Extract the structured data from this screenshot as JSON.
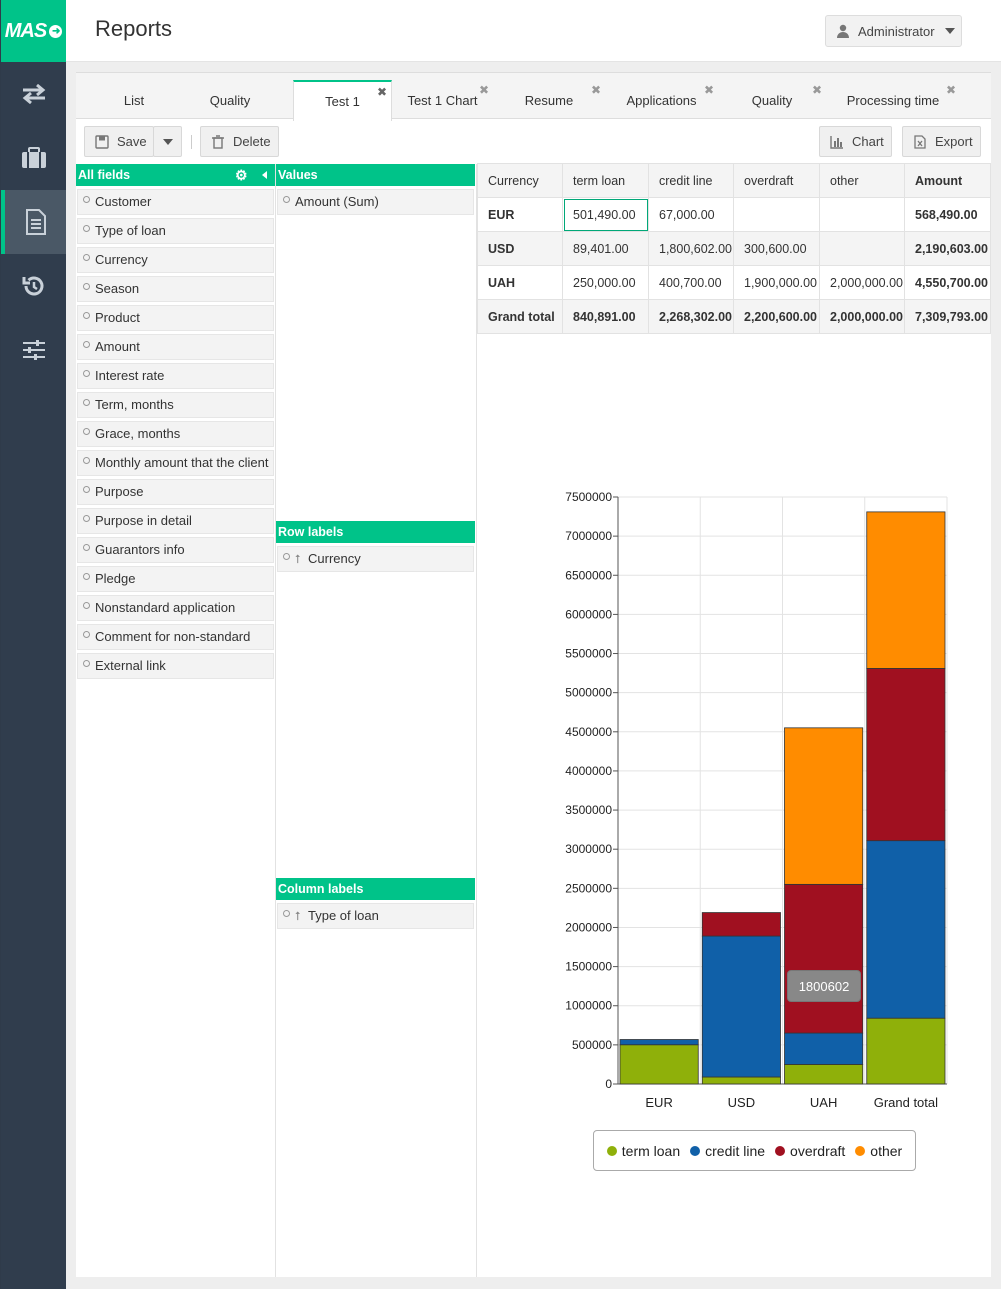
{
  "app": {
    "logo_text": "MAS"
  },
  "header": {
    "title": "Reports",
    "user_label": "Administrator"
  },
  "rail": {
    "items": [
      "transfer-icon",
      "briefcase-icon",
      "document-icon",
      "history-icon",
      "sliders-icon"
    ]
  },
  "tabs": [
    {
      "label": "List",
      "closable": false
    },
    {
      "label": "Quality",
      "closable": false
    },
    {
      "label": "Test 1",
      "closable": true,
      "active": true
    },
    {
      "label": "Test 1 Chart",
      "closable": true
    },
    {
      "label": "Resume",
      "closable": true
    },
    {
      "label": "Applications",
      "closable": true
    },
    {
      "label": "Quality",
      "closable": true
    },
    {
      "label": "Processing time",
      "closable": true
    }
  ],
  "toolbar": {
    "save_label": "Save",
    "delete_label": "Delete",
    "chart_label": "Chart",
    "export_label": "Export"
  },
  "all_fields": {
    "header": "All fields",
    "items": [
      "Customer",
      "Type of loan",
      "Currency",
      "Season",
      "Product",
      "Amount",
      "Interest rate",
      "Term, months",
      "Grace, months",
      "Monthly amount that the client",
      "Purpose",
      "Purpose in detail",
      "Guarantors info",
      "Pledge",
      "Nonstandard application",
      "Comment for non-standard",
      "External link"
    ]
  },
  "values": {
    "header": "Values",
    "items": [
      "Amount (Sum)"
    ]
  },
  "row_labels": {
    "header": "Row labels",
    "items": [
      "Currency"
    ]
  },
  "column_labels": {
    "header": "Column labels",
    "items": [
      "Type of loan"
    ]
  },
  "table": {
    "headers": [
      "Currency",
      "term loan",
      "credit line",
      "overdraft",
      "other",
      "Amount"
    ],
    "rows": [
      [
        "EUR",
        "501,490.00",
        "67,000.00",
        "",
        "",
        "568,490.00"
      ],
      [
        "USD",
        "89,401.00",
        "1,800,602.00",
        "300,600.00",
        "",
        "2,190,603.00"
      ],
      [
        "UAH",
        "250,000.00",
        "400,700.00",
        "1,900,000.00",
        "2,000,000.00",
        "4,550,700.00"
      ],
      [
        "Grand total",
        "840,891.00",
        "2,268,302.00",
        "2,200,600.00",
        "2,000,000.00",
        "7,309,793.00"
      ]
    ]
  },
  "chart_data": {
    "type": "bar",
    "stacked": true,
    "categories": [
      "EUR",
      "USD",
      "UAH",
      "Grand total"
    ],
    "series": [
      {
        "name": "term loan",
        "color": "#8fb00a",
        "values": [
          501490,
          89401,
          250000,
          840891
        ]
      },
      {
        "name": "credit line",
        "color": "#1060a8",
        "values": [
          67000,
          1800602,
          400700,
          2268302
        ]
      },
      {
        "name": "overdraft",
        "color": "#a01020",
        "values": [
          0,
          300600,
          1900000,
          2200600
        ]
      },
      {
        "name": "other",
        "color": "#ff8c00",
        "values": [
          0,
          0,
          2000000,
          2000000
        ]
      }
    ],
    "ylim": [
      0,
      7500000
    ],
    "yticks": [
      0,
      500000,
      1000000,
      1500000,
      2000000,
      2500000,
      3000000,
      3500000,
      4000000,
      4500000,
      5000000,
      5500000,
      6000000,
      6500000,
      7000000,
      7500000
    ],
    "tooltip": "1800602",
    "legend_position": "bottom",
    "grid": true
  }
}
